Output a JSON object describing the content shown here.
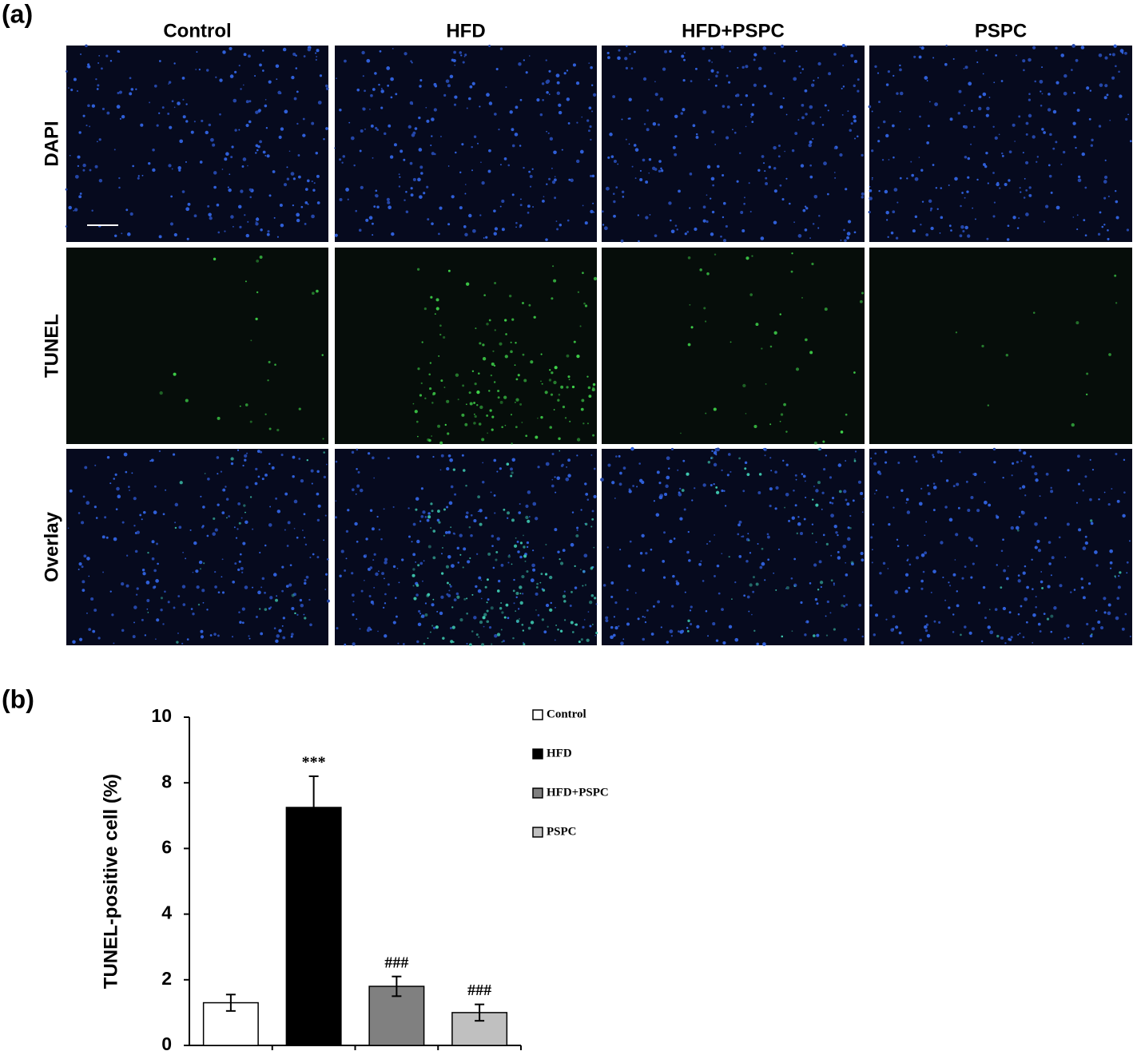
{
  "panel_a": {
    "label": "(a)",
    "columns": [
      "Control",
      "HFD",
      "HFD+PSPC",
      "PSPC"
    ],
    "rows": [
      "DAPI",
      "TUNEL",
      "Overlay"
    ]
  },
  "panel_b": {
    "label": "(b)"
  },
  "chart_data": {
    "type": "bar",
    "y_label": "TUNEL-positive cell (%)",
    "categories": [
      null
    ],
    "series": [
      {
        "name": "Control",
        "color": "#ffffff",
        "values": [
          1.3
        ],
        "errors": [
          0.25
        ]
      },
      {
        "name": "HFD",
        "color": "#000000",
        "values": [
          7.25
        ],
        "errors": [
          0.95
        ],
        "annotation": "***"
      },
      {
        "name": "HFD+PSPC",
        "color": "#808080",
        "values": [
          1.8
        ],
        "errors": [
          0.3
        ],
        "annotation": "###"
      },
      {
        "name": "PSPC",
        "color": "#c0c0c0",
        "values": [
          1.0
        ],
        "errors": [
          0.25
        ],
        "annotation": "###"
      }
    ],
    "ylim": [
      0,
      10
    ],
    "yticks": [
      0,
      2,
      4,
      6,
      8,
      10
    ],
    "grid": false
  }
}
